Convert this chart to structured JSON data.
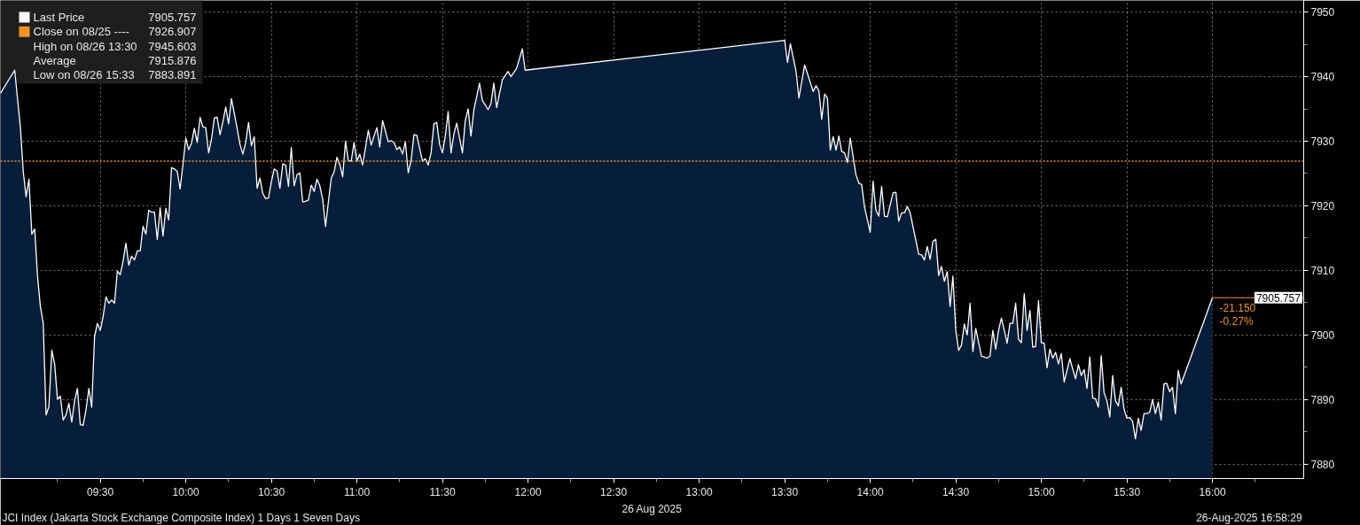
{
  "chart_data": {
    "type": "area",
    "xlabel": "26 Aug 2025",
    "xlim": [
      "2025-08-26T08:55",
      "2025-08-26T16:32"
    ],
    "ylim": [
      7877.75,
      7951.8
    ],
    "xticks": [
      {
        "value": "2025-08-26T09:30",
        "label": "09:30"
      },
      {
        "value": "2025-08-26T10:00",
        "label": "10:00"
      },
      {
        "value": "2025-08-26T10:30",
        "label": "10:30"
      },
      {
        "value": "2025-08-26T11:00",
        "label": "11:00"
      },
      {
        "value": "2025-08-26T11:30",
        "label": "11:30"
      },
      {
        "value": "2025-08-26T12:00",
        "label": "12:00"
      },
      {
        "value": "2025-08-26T12:30",
        "label": "12:30"
      },
      {
        "value": "2025-08-26T13:00",
        "label": "13:00"
      },
      {
        "value": "2025-08-26T13:30",
        "label": "13:30"
      },
      {
        "value": "2025-08-26T14:00",
        "label": "14:00"
      },
      {
        "value": "2025-08-26T14:30",
        "label": "14:30"
      },
      {
        "value": "2025-08-26T15:00",
        "label": "15:00"
      },
      {
        "value": "2025-08-26T15:30",
        "label": "15:30"
      },
      {
        "value": "2025-08-26T16:00",
        "label": "16:00"
      }
    ],
    "yticks": [
      7880,
      7890,
      7900,
      7910,
      7920,
      7930,
      7940,
      7950
    ],
    "grid": true,
    "legend": "top left",
    "series": [
      {
        "name": "Last Price",
        "color": "#ffffff",
        "x": [
          "2025-08-26T08:55",
          "2025-08-26T09:00",
          "2025-08-26T09:02",
          "2025-08-26T09:03",
          "2025-08-26T09:04",
          "2025-08-26T09:05",
          "2025-08-26T09:06",
          "2025-08-26T09:07",
          "2025-08-26T09:08",
          "2025-08-26T09:09",
          "2025-08-26T09:10",
          "2025-08-26T09:11",
          "2025-08-26T09:12",
          "2025-08-26T09:13",
          "2025-08-26T09:14",
          "2025-08-26T09:15",
          "2025-08-26T09:16",
          "2025-08-26T09:17",
          "2025-08-26T09:18",
          "2025-08-26T09:19",
          "2025-08-26T09:20",
          "2025-08-26T09:21",
          "2025-08-26T09:22",
          "2025-08-26T09:23",
          "2025-08-26T09:24",
          "2025-08-26T09:25",
          "2025-08-26T09:26",
          "2025-08-26T09:27",
          "2025-08-26T09:28",
          "2025-08-26T09:29",
          "2025-08-26T09:30",
          "2025-08-26T09:31",
          "2025-08-26T09:32",
          "2025-08-26T09:33",
          "2025-08-26T09:34",
          "2025-08-26T09:35",
          "2025-08-26T09:36",
          "2025-08-26T09:37",
          "2025-08-26T09:38",
          "2025-08-26T09:39",
          "2025-08-26T09:40",
          "2025-08-26T09:41",
          "2025-08-26T09:42",
          "2025-08-26T09:43",
          "2025-08-26T09:44",
          "2025-08-26T09:45",
          "2025-08-26T09:46",
          "2025-08-26T09:47",
          "2025-08-26T09:48",
          "2025-08-26T09:49",
          "2025-08-26T09:50",
          "2025-08-26T09:51",
          "2025-08-26T09:52",
          "2025-08-26T09:53",
          "2025-08-26T09:54",
          "2025-08-26T09:55",
          "2025-08-26T09:56",
          "2025-08-26T09:57",
          "2025-08-26T09:58",
          "2025-08-26T09:59",
          "2025-08-26T10:00",
          "2025-08-26T10:01",
          "2025-08-26T10:02",
          "2025-08-26T10:03",
          "2025-08-26T10:04",
          "2025-08-26T10:05",
          "2025-08-26T10:06",
          "2025-08-26T10:07",
          "2025-08-26T10:08",
          "2025-08-26T10:09",
          "2025-08-26T10:10",
          "2025-08-26T10:11",
          "2025-08-26T10:12",
          "2025-08-26T10:13",
          "2025-08-26T10:14",
          "2025-08-26T10:15",
          "2025-08-26T10:16",
          "2025-08-26T10:17",
          "2025-08-26T10:18",
          "2025-08-26T10:19",
          "2025-08-26T10:20",
          "2025-08-26T10:21",
          "2025-08-26T10:22",
          "2025-08-26T10:23",
          "2025-08-26T10:24",
          "2025-08-26T10:25",
          "2025-08-26T10:26",
          "2025-08-26T10:27",
          "2025-08-26T10:28",
          "2025-08-26T10:29",
          "2025-08-26T10:30",
          "2025-08-26T10:31",
          "2025-08-26T10:32",
          "2025-08-26T10:33",
          "2025-08-26T10:34",
          "2025-08-26T10:35",
          "2025-08-26T10:36",
          "2025-08-26T10:37",
          "2025-08-26T10:38",
          "2025-08-26T10:39",
          "2025-08-26T10:40",
          "2025-08-26T10:41",
          "2025-08-26T10:42",
          "2025-08-26T10:43",
          "2025-08-26T10:44",
          "2025-08-26T10:45",
          "2025-08-26T10:46",
          "2025-08-26T10:47",
          "2025-08-26T10:48",
          "2025-08-26T10:49",
          "2025-08-26T10:50",
          "2025-08-26T10:51",
          "2025-08-26T10:52",
          "2025-08-26T10:53",
          "2025-08-26T10:54",
          "2025-08-26T10:55",
          "2025-08-26T10:56",
          "2025-08-26T10:57",
          "2025-08-26T10:58",
          "2025-08-26T10:59",
          "2025-08-26T11:00",
          "2025-08-26T11:01",
          "2025-08-26T11:02",
          "2025-08-26T11:04",
          "2025-08-26T11:05",
          "2025-08-26T11:06",
          "2025-08-26T11:07",
          "2025-08-26T11:08",
          "2025-08-26T11:09",
          "2025-08-26T11:11",
          "2025-08-26T11:12",
          "2025-08-26T11:13",
          "2025-08-26T11:14",
          "2025-08-26T11:15",
          "2025-08-26T11:16",
          "2025-08-26T11:17",
          "2025-08-26T11:18",
          "2025-08-26T11:19",
          "2025-08-26T11:20",
          "2025-08-26T11:21",
          "2025-08-26T11:23",
          "2025-08-26T11:24",
          "2025-08-26T11:25",
          "2025-08-26T11:26",
          "2025-08-26T11:27",
          "2025-08-26T11:28",
          "2025-08-26T11:29",
          "2025-08-26T11:30",
          "2025-08-26T11:31",
          "2025-08-26T11:32",
          "2025-08-26T11:33",
          "2025-08-26T11:34",
          "2025-08-26T11:35",
          "2025-08-26T11:37",
          "2025-08-26T11:38",
          "2025-08-26T11:39",
          "2025-08-26T11:40",
          "2025-08-26T11:41",
          "2025-08-26T11:43",
          "2025-08-26T11:44",
          "2025-08-26T11:46",
          "2025-08-26T11:47",
          "2025-08-26T11:48",
          "2025-08-26T11:49",
          "2025-08-26T11:51",
          "2025-08-26T11:53",
          "2025-08-26T11:54",
          "2025-08-26T11:56",
          "2025-08-26T11:58",
          "2025-08-26T11:59",
          "2025-08-26T13:30",
          "2025-08-26T13:31",
          "2025-08-26T13:32",
          "2025-08-26T13:34",
          "2025-08-26T13:35",
          "2025-08-26T13:37",
          "2025-08-26T13:40",
          "2025-08-26T13:41",
          "2025-08-26T13:42",
          "2025-08-26T13:43",
          "2025-08-26T13:44",
          "2025-08-26T13:45",
          "2025-08-26T13:46",
          "2025-08-26T13:47",
          "2025-08-26T13:48",
          "2025-08-26T13:49",
          "2025-08-26T13:50",
          "2025-08-26T13:51",
          "2025-08-26T13:52",
          "2025-08-26T13:53",
          "2025-08-26T13:54",
          "2025-08-26T13:55",
          "2025-08-26T13:56",
          "2025-08-26T13:57",
          "2025-08-26T13:58",
          "2025-08-26T14:00",
          "2025-08-26T14:01",
          "2025-08-26T14:02",
          "2025-08-26T14:03",
          "2025-08-26T14:04",
          "2025-08-26T14:05",
          "2025-08-26T14:06",
          "2025-08-26T14:08",
          "2025-08-26T14:09",
          "2025-08-26T14:10",
          "2025-08-26T14:11",
          "2025-08-26T14:12",
          "2025-08-26T14:13",
          "2025-08-26T14:14",
          "2025-08-26T14:17",
          "2025-08-26T14:18",
          "2025-08-26T14:19",
          "2025-08-26T14:20",
          "2025-08-26T14:21",
          "2025-08-26T14:22",
          "2025-08-26T14:23",
          "2025-08-26T14:24",
          "2025-08-26T14:25",
          "2025-08-26T14:26",
          "2025-08-26T14:27",
          "2025-08-26T14:28",
          "2025-08-26T14:29",
          "2025-08-26T14:30",
          "2025-08-26T14:31",
          "2025-08-26T14:32",
          "2025-08-26T14:33",
          "2025-08-26T14:34",
          "2025-08-26T14:35",
          "2025-08-26T14:36",
          "2025-08-26T14:37",
          "2025-08-26T14:39",
          "2025-08-26T14:40",
          "2025-08-26T14:41",
          "2025-08-26T14:42",
          "2025-08-26T14:43",
          "2025-08-26T14:44",
          "2025-08-26T14:45",
          "2025-08-26T14:46",
          "2025-08-26T14:47",
          "2025-08-26T14:48",
          "2025-08-26T14:49",
          "2025-08-26T14:50",
          "2025-08-26T14:51",
          "2025-08-26T14:52",
          "2025-08-26T14:53",
          "2025-08-26T14:54",
          "2025-08-26T14:55",
          "2025-08-26T14:56",
          "2025-08-26T14:57",
          "2025-08-26T14:58",
          "2025-08-26T14:59",
          "2025-08-26T15:00",
          "2025-08-26T15:01",
          "2025-08-26T15:02",
          "2025-08-26T15:03",
          "2025-08-26T15:04",
          "2025-08-26T15:05",
          "2025-08-26T15:06",
          "2025-08-26T15:07",
          "2025-08-26T15:08",
          "2025-08-26T15:10",
          "2025-08-26T15:12",
          "2025-08-26T15:13",
          "2025-08-26T15:14",
          "2025-08-26T15:15",
          "2025-08-26T15:16",
          "2025-08-26T15:17",
          "2025-08-26T15:18",
          "2025-08-26T15:19",
          "2025-08-26T15:20",
          "2025-08-26T15:21",
          "2025-08-26T15:22",
          "2025-08-26T15:23",
          "2025-08-26T15:24",
          "2025-08-26T15:25",
          "2025-08-26T15:26",
          "2025-08-26T15:27",
          "2025-08-26T15:28",
          "2025-08-26T15:29",
          "2025-08-26T15:30",
          "2025-08-26T15:31",
          "2025-08-26T15:32",
          "2025-08-26T15:33",
          "2025-08-26T15:34",
          "2025-08-26T15:35",
          "2025-08-26T15:36",
          "2025-08-26T15:37",
          "2025-08-26T15:38",
          "2025-08-26T15:39",
          "2025-08-26T15:40",
          "2025-08-26T15:41",
          "2025-08-26T15:42",
          "2025-08-26T15:43",
          "2025-08-26T15:44",
          "2025-08-26T15:45",
          "2025-08-26T15:46",
          "2025-08-26T15:47",
          "2025-08-26T15:48",
          "2025-08-26T15:49",
          "2025-08-26T16:00"
        ],
        "values": [
          7937.4,
          7941.0,
          7932.1,
          7925.3,
          7921.4,
          7924.1,
          7915.6,
          7916.4,
          7909.1,
          7904.4,
          7901.8,
          7887.6,
          7888.9,
          7897.6,
          7895.5,
          7890.0,
          7890.5,
          7886.8,
          7887.6,
          7889.4,
          7886.5,
          7889.8,
          7891.7,
          7886.1,
          7886.0,
          7888.4,
          7891.7,
          7888.8,
          7899.7,
          7901.8,
          7900.7,
          7902.8,
          7905.9,
          7904.9,
          7905.4,
          7904.9,
          7909.9,
          7909.3,
          7911.4,
          7914.2,
          7910.8,
          7912.2,
          7911.6,
          7913.0,
          7913.0,
          7916.8,
          7915.6,
          7919.3,
          7919.0,
          7919.0,
          7914.8,
          7919.7,
          7915.3,
          7919.6,
          7917.8,
          7925.9,
          7925.7,
          7925.3,
          7922.6,
          7926.4,
          7930.5,
          7928.7,
          7929.7,
          7932.0,
          7929.8,
          7933.7,
          7932.2,
          7932.1,
          7928.2,
          7930.3,
          7933.6,
          7933.7,
          7931.0,
          7933.0,
          7935.3,
          7932.7,
          7936.6,
          7934.3,
          7932.0,
          7929.5,
          7928.0,
          7929.8,
          7932.9,
          7929.3,
          7930.7,
          7922.7,
          7924.3,
          7921.9,
          7921.1,
          7921.2,
          7923.7,
          7925.7,
          7925.4,
          7922.7,
          7926.5,
          7926.3,
          7923.0,
          7929.0,
          7923.1,
          7924.8,
          7925.1,
          7920.6,
          7920.7,
          7920.9,
          7923.2,
          7922.2,
          7924.1,
          7923.1,
          7921.0,
          7916.8,
          7920.6,
          7924.3,
          7925.2,
          7927.5,
          7926.4,
          7924.5,
          7930.0,
          7927.0,
          7926.9,
          7929.8,
          7926.9,
          7928.0,
          7926.3,
          7931.7,
          7929.4,
          7930.8,
          7932.1,
          7929.1,
          7933.2,
          7929.9,
          7930.1,
          7929.8,
          7928.7,
          7929.1,
          7928.0,
          7929.9,
          7925.1,
          7927.0,
          7931.0,
          7930.9,
          7926.9,
          7927.3,
          7926.3,
          7928.2,
          7932.7,
          7932.9,
          7929.5,
          7928.2,
          7930.8,
          7934.6,
          7928.2,
          7931.1,
          7932.8,
          7928.2,
          7933.2,
          7935.0,
          7930.8,
          7934.8,
          7939.0,
          7936.3,
          7934.9,
          7935.8,
          7939.0,
          7935.2,
          7939.5,
          7940.8,
          7940.0,
          7941.3,
          7944.3,
          7941.0,
          7945.603,
          7942.2,
          7945.1,
          7940.8,
          7936.7,
          7941.8,
          7937.7,
          7938.6,
          7937.8,
          7933.4,
          7937.3,
          7936.7,
          7928.6,
          7930.7,
          7928.6,
          7930.8,
          7928.4,
          7928.2,
          7926.7,
          7930.5,
          7927.6,
          7924.8,
          7923.5,
          7923.3,
          7919.8,
          7915.9,
          7923.8,
          7919.3,
          7918.4,
          7923.0,
          7918.4,
          7918.3,
          7922.0,
          7922.1,
          7917.6,
          7918.9,
          7918.9,
          7919.9,
          7918.9,
          7912.5,
          7912.4,
          7911.6,
          7913.7,
          7911.7,
          7914.5,
          7914.8,
          7909.2,
          7910.6,
          7908.3,
          7909.8,
          7904.4,
          7909.1,
          7900.7,
          7897.6,
          7898.4,
          7901.7,
          7900.0,
          7904.9,
          7897.4,
          7901.0,
          7896.7,
          7896.6,
          7896.4,
          7896.7,
          7900.7,
          7897.8,
          7900.7,
          7902.6,
          7900.7,
          7898.7,
          7901.8,
          7901.8,
          7904.9,
          7899.3,
          7898.8,
          7906.4,
          7900.7,
          7903.8,
          7898.1,
          7898.2,
          7905.3,
          7898.8,
          7898.7,
          7894.9,
          7897.8,
          7896.4,
          7897.3,
          7895.5,
          7897.1,
          7892.7,
          7896.3,
          7893.2,
          7895.4,
          7893.7,
          7894.6,
          7891.7,
          7896.6,
          7890.2,
          7890.1,
          7888.8,
          7896.8,
          7891.0,
          7889.8,
          7887.3,
          7893.7,
          7889.8,
          7889.0,
          7891.9,
          7888.5,
          7887.1,
          7887.2,
          7886.6,
          7883.891,
          7887.1,
          7885.2,
          7887.8,
          7887.8,
          7888.0,
          7890.0,
          7887.8,
          7889.6,
          7886.8,
          7892.4,
          7892.5,
          7891.2,
          7891.9,
          7887.8,
          7894.5,
          7892.4,
          7905.757
        ]
      }
    ],
    "ref_lines": [
      {
        "axis": "y",
        "value": 7926.907,
        "label": "Close on 08/25 ----",
        "color": "#f7941d",
        "line_style": "dotted"
      }
    ],
    "annotations": [
      "7905.757",
      "7926.907",
      "High on 08/26 13:30",
      "7945.603",
      "Average",
      "7915.876",
      "Low on 08/26 15:33",
      "7883.891",
      {
        "text": "7905.757",
        "x": "2025-08-26T16:00",
        "y": 7905.757
      },
      {
        "text": "-21.150",
        "x": "2025-08-26T16:00",
        "y": 7905.757
      },
      {
        "text": "-0.27%",
        "x": "2025-08-26T16:00",
        "y": 7905.757
      },
      "JCI Index (Jakarta Stock Exchange Composite Index) 1 Days 1 Seven Days",
      "26-Aug-2025 16:58:29"
    ]
  }
}
